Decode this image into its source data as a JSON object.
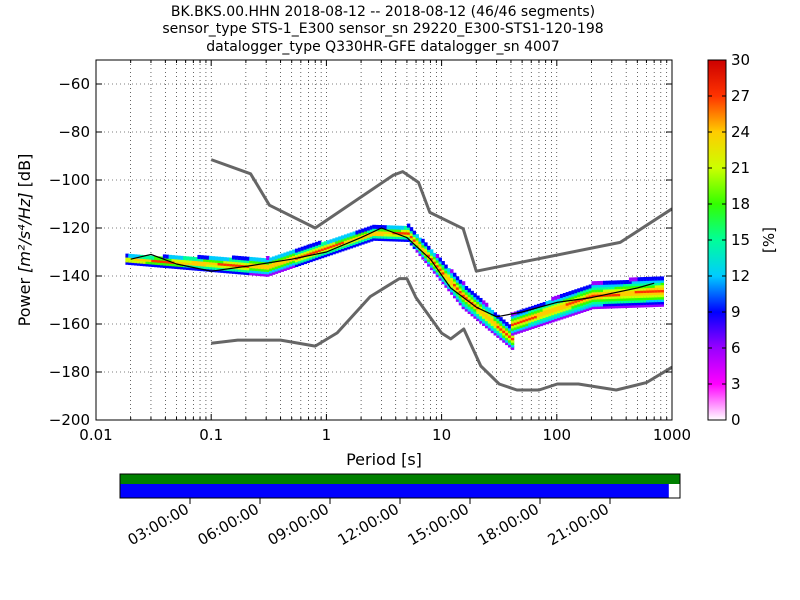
{
  "chart_data": {
    "type": "heatmap",
    "title_lines": [
      "BK.BKS.00.HHN   2018-08-12 -- 2018-08-12  (46/46 segments)",
      "sensor_type STS-1_E300 sensor_sn 29220_E300-STS1-120-198",
      "datalogger_type Q330HR-GFE datalogger_sn 4007"
    ],
    "xlabel": "Period [s]",
    "ylabel_prefix": "Power ",
    "ylabel_units": "[m²/s⁴/Hz]",
    "ylabel_suffix": " [dB]",
    "x_scale": "log",
    "xlim": [
      0.01,
      1000
    ],
    "ylim": [
      -200,
      -50
    ],
    "x_ticks": [
      {
        "value": 0.01,
        "label": "0.01"
      },
      {
        "value": 0.1,
        "label": "0.1"
      },
      {
        "value": 1,
        "label": "1"
      },
      {
        "value": 10,
        "label": "10"
      },
      {
        "value": 100,
        "label": "100"
      },
      {
        "value": 1000,
        "label": "1000"
      }
    ],
    "y_ticks": [
      {
        "value": -60,
        "label": "−60"
      },
      {
        "value": -80,
        "label": "−80"
      },
      {
        "value": -100,
        "label": "−100"
      },
      {
        "value": -120,
        "label": "−120"
      },
      {
        "value": -140,
        "label": "−140"
      },
      {
        "value": -160,
        "label": "−160"
      },
      {
        "value": -180,
        "label": "−180"
      },
      {
        "value": -200,
        "label": "−200"
      }
    ],
    "grid": "dotted vertical and horizontal",
    "colorbar": {
      "label": "[%]",
      "min": 0,
      "max": 30,
      "ticks": [
        "0",
        "3",
        "6",
        "9",
        "12",
        "15",
        "18",
        "21",
        "24",
        "27",
        "30"
      ],
      "colormap": [
        "#ffffff",
        "#ff00ff",
        "#9900ff",
        "#0000ff",
        "#00ccff",
        "#00ff99",
        "#33ff00",
        "#ccff00",
        "#ffcc00",
        "#ff3300",
        "#cc0000"
      ]
    },
    "series": [
      {
        "role": "nhnm",
        "color": "#666666",
        "points": [
          [
            0.1,
            -91.5
          ],
          [
            0.22,
            -97.4
          ],
          [
            0.32,
            -110.5
          ],
          [
            0.8,
            -120
          ],
          [
            3.8,
            -98
          ],
          [
            4.6,
            -96.5
          ],
          [
            6.3,
            -101
          ],
          [
            7.9,
            -113.5
          ],
          [
            15.4,
            -120.3
          ],
          [
            20,
            -138
          ],
          [
            354.8,
            -126
          ],
          [
            1000,
            -112
          ]
        ]
      },
      {
        "role": "nlnm",
        "color": "#666666",
        "points": [
          [
            0.1,
            -168
          ],
          [
            0.17,
            -166.7
          ],
          [
            0.4,
            -166.7
          ],
          [
            0.8,
            -169.2
          ],
          [
            1.24,
            -163.7
          ],
          [
            2.4,
            -148.6
          ],
          [
            4.3,
            -141.1
          ],
          [
            5,
            -141.1
          ],
          [
            6,
            -149
          ],
          [
            10,
            -163.8
          ],
          [
            12,
            -166.2
          ],
          [
            15.6,
            -162.1
          ],
          [
            21.9,
            -177.5
          ],
          [
            31.6,
            -185
          ],
          [
            45,
            -187.5
          ],
          [
            70,
            -187.5
          ],
          [
            101,
            -185
          ],
          [
            154,
            -185
          ],
          [
            328,
            -187.5
          ],
          [
            600,
            -184.4
          ],
          [
            1000,
            -178
          ]
        ]
      },
      {
        "role": "mean",
        "color": "#000000",
        "points": [
          [
            0.02,
            -133
          ],
          [
            0.03,
            -131
          ],
          [
            0.05,
            -135
          ],
          [
            0.1,
            -138
          ],
          [
            0.2,
            -136
          ],
          [
            0.5,
            -133
          ],
          [
            1,
            -130
          ],
          [
            2,
            -124
          ],
          [
            3,
            -120
          ],
          [
            5,
            -124
          ],
          [
            8,
            -133
          ],
          [
            12,
            -145
          ],
          [
            20,
            -153
          ],
          [
            30,
            -157
          ],
          [
            50,
            -155
          ],
          [
            100,
            -151
          ],
          [
            200,
            -149
          ],
          [
            500,
            -145
          ],
          [
            700,
            -143
          ]
        ]
      }
    ],
    "density_bands": [
      {
        "x": [
          0.018,
          0.3
        ],
        "center": [
          -133,
          -136
        ],
        "half_width": [
          1.5,
          3.5
        ]
      },
      {
        "x": [
          0.3,
          2.5
        ],
        "center": [
          -136,
          -122
        ],
        "half_width": [
          3.5,
          2.5
        ]
      },
      {
        "x": [
          2.5,
          5
        ],
        "center": [
          -122,
          -122
        ],
        "half_width": [
          2.5,
          3
        ]
      },
      {
        "x": [
          5,
          15
        ],
        "center": [
          -122,
          -148
        ],
        "half_width": [
          3,
          5
        ]
      },
      {
        "x": [
          15,
          40
        ],
        "center": [
          -148,
          -166
        ],
        "half_width": [
          5,
          4
        ]
      },
      {
        "x": [
          40,
          200
        ],
        "center": [
          -160,
          -148
        ],
        "half_width": [
          4,
          5
        ]
      },
      {
        "x": [
          200,
          800
        ],
        "center": [
          -148,
          -146
        ],
        "half_width": [
          5,
          6
        ]
      }
    ],
    "time_axis": {
      "ticks": [
        "03:00:00",
        "06:00:00",
        "09:00:00",
        "12:00:00",
        "15:00:00",
        "18:00:00",
        "21:00:00"
      ],
      "coverage_fraction": 0.98
    }
  }
}
